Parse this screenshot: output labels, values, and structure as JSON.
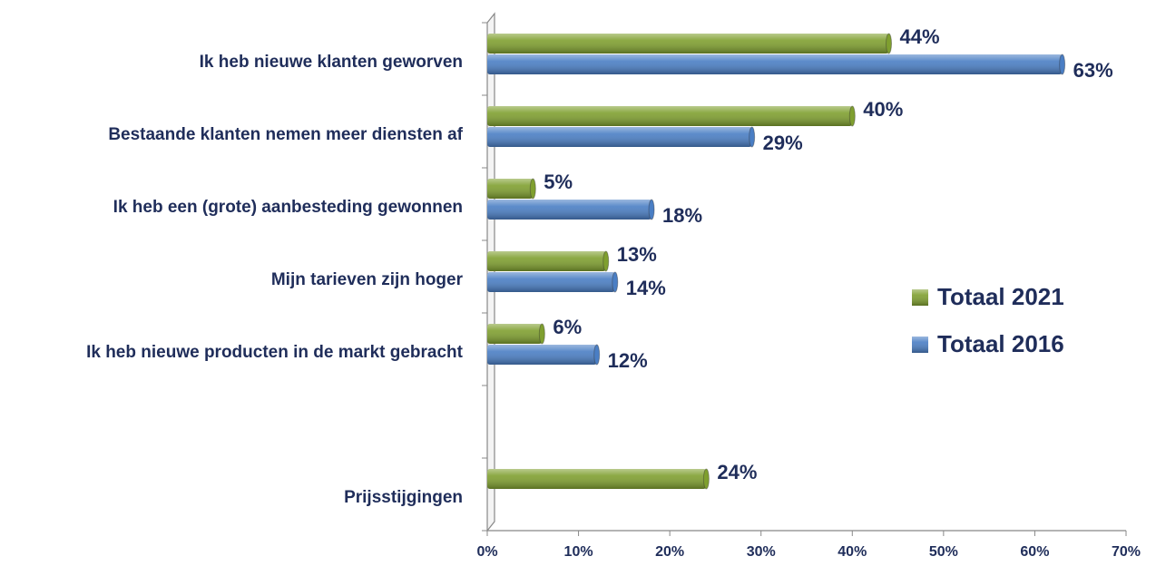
{
  "chart_data": {
    "type": "bar",
    "orientation": "horizontal",
    "categories": [
      "Ik heb nieuwe klanten geworven",
      "Bestaande klanten nemen meer diensten af",
      "Ik heb een (grote) aanbesteding gewonnen",
      "Mijn tarieven zijn hoger",
      "Ik heb nieuwe producten in de markt gebracht",
      null,
      "Prijsstijgingen"
    ],
    "series": [
      {
        "name": "Totaal 2021",
        "color": "#7f9f2f",
        "values": [
          44,
          40,
          5,
          13,
          6,
          null,
          24
        ],
        "value_labels": [
          "44%",
          "40%",
          "5%",
          "13%",
          "6%",
          null,
          "24%"
        ]
      },
      {
        "name": "Totaal 2016",
        "color": "#4a7ec4",
        "values": [
          63,
          29,
          18,
          14,
          12,
          null,
          null
        ],
        "value_labels": [
          "63%",
          "29%",
          "18%",
          "14%",
          "12%",
          null,
          null
        ]
      }
    ],
    "xlim": [
      0,
      70
    ],
    "xticks": [
      {
        "value": 0,
        "label": "0%"
      },
      {
        "value": 10,
        "label": "10%"
      },
      {
        "value": 20,
        "label": "20%"
      },
      {
        "value": 30,
        "label": "30%"
      },
      {
        "value": 40,
        "label": "40%"
      },
      {
        "value": 50,
        "label": "50%"
      },
      {
        "value": 60,
        "label": "60%"
      },
      {
        "value": 70,
        "label": "70%"
      }
    ],
    "legend": "right"
  }
}
